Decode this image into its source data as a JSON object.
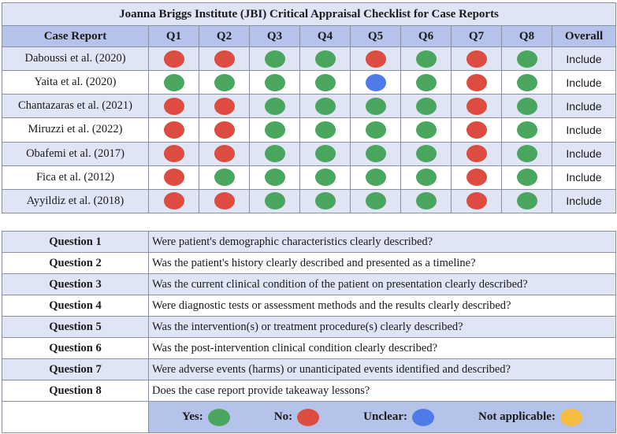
{
  "title": "Joanna Briggs Institute (JBI) Critical Appraisal Checklist for Case Reports",
  "colors": {
    "yes": "#4aa55e",
    "no": "#dd4c40",
    "unclear": "#4f7be8",
    "not_applicable": "#f5bd3f"
  },
  "headers": [
    "Case Report",
    "Q1",
    "Q2",
    "Q3",
    "Q4",
    "Q5",
    "Q6",
    "Q7",
    "Q8",
    "Overall"
  ],
  "reports": [
    {
      "name": "Daboussi et al. (2020)",
      "ratings": [
        "no",
        "no",
        "yes",
        "yes",
        "no",
        "yes",
        "no",
        "yes"
      ],
      "overall": "Include"
    },
    {
      "name": "Yaita et al. (2020)",
      "ratings": [
        "yes",
        "yes",
        "yes",
        "yes",
        "unclear",
        "yes",
        "no",
        "yes"
      ],
      "overall": "Include"
    },
    {
      "name": "Chantazaras et al. (2021)",
      "ratings": [
        "no",
        "no",
        "yes",
        "yes",
        "yes",
        "yes",
        "no",
        "yes"
      ],
      "overall": "Include"
    },
    {
      "name": "Miruzzi et al. (2022)",
      "ratings": [
        "no",
        "no",
        "yes",
        "yes",
        "yes",
        "yes",
        "no",
        "yes"
      ],
      "overall": "Include"
    },
    {
      "name": "Obafemi et al. (2017)",
      "ratings": [
        "no",
        "no",
        "yes",
        "yes",
        "yes",
        "yes",
        "no",
        "yes"
      ],
      "overall": "Include"
    },
    {
      "name": "Fica et al. (2012)",
      "ratings": [
        "no",
        "yes",
        "yes",
        "yes",
        "yes",
        "yes",
        "no",
        "yes"
      ],
      "overall": "Include"
    },
    {
      "name": "Ayyildiz et al. (2018)",
      "ratings": [
        "no",
        "no",
        "yes",
        "yes",
        "yes",
        "yes",
        "no",
        "yes"
      ],
      "overall": "Include"
    }
  ],
  "questions": [
    {
      "label": "Question 1",
      "text": "Were patient's demographic characteristics clearly described?"
    },
    {
      "label": "Question 2",
      "text": "Was the patient's history clearly described and presented as a timeline?"
    },
    {
      "label": "Question 3",
      "text": "Was the current clinical condition of the patient on presentation clearly described?"
    },
    {
      "label": "Question 4",
      "text": "Were diagnostic tests or assessment methods and the results clearly described?"
    },
    {
      "label": "Question 5",
      "text": "Was the intervention(s) or treatment procedure(s) clearly described?"
    },
    {
      "label": "Question 6",
      "text": "Was the post-intervention clinical condition clearly described?"
    },
    {
      "label": "Question 7",
      "text": "Were adverse events (harms) or unanticipated events identified and described?"
    },
    {
      "label": "Question 8",
      "text": "Does the case report provide takeaway lessons?"
    }
  ],
  "legend": [
    {
      "key": "yes",
      "label": "Yes:"
    },
    {
      "key": "no",
      "label": "No:"
    },
    {
      "key": "unclear",
      "label": "Unclear:"
    },
    {
      "key": "not_applicable",
      "label": "Not applicable:"
    }
  ]
}
